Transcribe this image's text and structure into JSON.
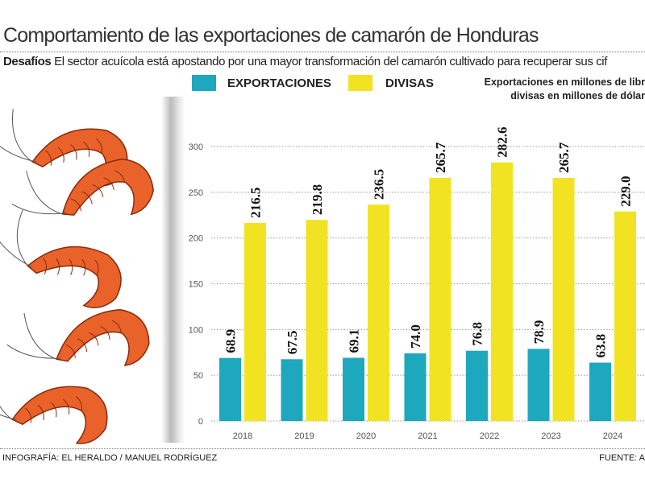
{
  "header": {
    "title": "Comportamiento de las exportaciones de camarón de Honduras",
    "subtitle_bold": "Desafíos",
    "subtitle": " El sector acuícola está apostando por una mayor transformación del camarón cultivado para recuperar sus cif"
  },
  "legend": [
    {
      "label": "EXPORTACIONES",
      "color": "#1da8bd"
    },
    {
      "label": "DIVISAS",
      "color": "#f2e322"
    }
  ],
  "note": {
    "line1": "Exportaciones en  millones de libr",
    "line2": "divisas en millones de dólar"
  },
  "footer": {
    "credit": "INFOGRAFÍA: EL HERALDO / MANUEL RODRÍGUEZ",
    "source": "FUENTE: A"
  },
  "chart_data": {
    "type": "bar",
    "categories": [
      "2018",
      "2019",
      "2020",
      "2021",
      "2022",
      "2023",
      "2024"
    ],
    "series": [
      {
        "name": "EXPORTACIONES",
        "color": "#1da8bd",
        "values": [
          68.9,
          67.5,
          69.1,
          74.0,
          76.8,
          78.9,
          63.8
        ]
      },
      {
        "name": "DIVISAS",
        "color": "#f2e322",
        "values": [
          216.5,
          219.8,
          236.5,
          265.7,
          282.6,
          265.7,
          229.0
        ]
      }
    ],
    "yticks": [
      "0",
      "50",
      "100",
      "150",
      "200",
      "250",
      "300"
    ],
    "ylim": [
      0,
      300
    ],
    "grid": true,
    "legend_position": "top"
  }
}
